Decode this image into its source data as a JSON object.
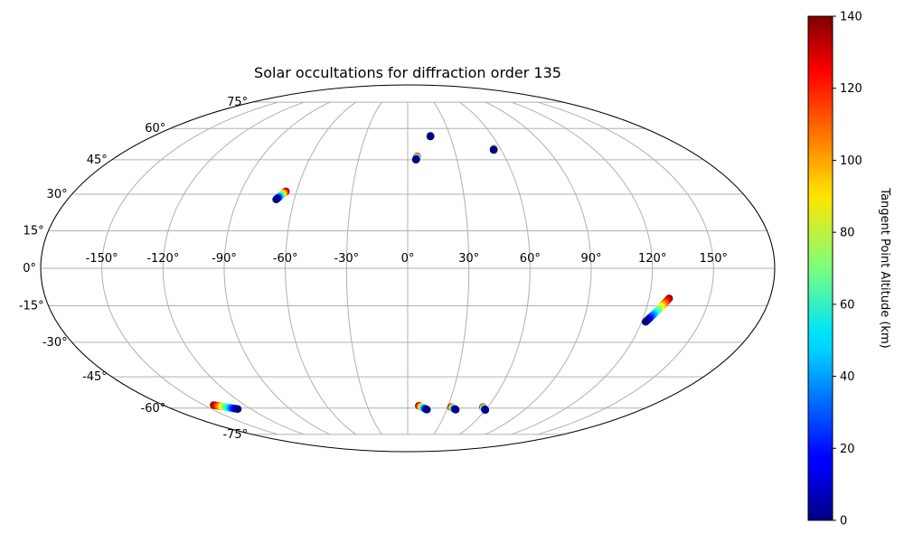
{
  "chart_data": {
    "type": "scatter",
    "projection": "mollweide",
    "title": "Solar occultations for diffraction order 135",
    "lon_ticks": [
      "-150°",
      "-120°",
      "-90°",
      "-60°",
      "-30°",
      "0°",
      "30°",
      "60°",
      "90°",
      "120°",
      "150°"
    ],
    "lon_tick_values": [
      -150,
      -120,
      -90,
      -60,
      -30,
      0,
      30,
      60,
      90,
      120,
      150
    ],
    "lat_ticks": [
      "-75°",
      "-60°",
      "-45°",
      "-30°",
      "-15°",
      "0°",
      "15°",
      "30°",
      "45°",
      "60°",
      "75°"
    ],
    "lat_tick_values": [
      -75,
      -60,
      -45,
      -30,
      -15,
      0,
      15,
      30,
      45,
      60,
      75
    ],
    "grid": true,
    "colormap": "jet",
    "colorbar": {
      "label": "Tangent Point Altitude (km)",
      "range": [
        0,
        140
      ],
      "ticks": [
        "0",
        "20",
        "40",
        "60",
        "80",
        "100",
        "120",
        "140"
      ],
      "tick_values": [
        0,
        20,
        40,
        60,
        80,
        100,
        120,
        140
      ]
    },
    "series": [
      {
        "values": [
          {
            "lon": -69.6,
            "lat": 27.8,
            "alt": 0
          },
          {
            "lon": -65.8,
            "lat": 31.2,
            "alt": 140
          }
        ]
      },
      {
        "values": [
          {
            "lon": 5.0,
            "lat": 45.0,
            "alt": 0
          },
          {
            "lon": 5.8,
            "lat": 46.5,
            "alt": 140
          }
        ]
      },
      {
        "values": [
          {
            "lon": 16.0,
            "lat": 56.0,
            "alt": 0
          },
          {
            "lon": 16.2,
            "lat": 56.3,
            "alt": 140
          }
        ]
      },
      {
        "values": [
          {
            "lon": 55.2,
            "lat": 49.5,
            "alt": 0
          },
          {
            "lon": 55.6,
            "lat": 50.0,
            "alt": 140
          }
        ]
      },
      {
        "values": [
          {
            "lon": 122.0,
            "lat": -21.5,
            "alt": 0
          },
          {
            "lon": 130.0,
            "lat": -12.0,
            "alt": 140
          }
        ]
      },
      {
        "values": [
          {
            "lon": -130.0,
            "lat": -60.5,
            "alt": 0
          },
          {
            "lon": -143.0,
            "lat": -58.5,
            "alt": 140
          }
        ]
      },
      {
        "values": [
          {
            "lon": 14.8,
            "lat": -60.8,
            "alt": 0
          },
          {
            "lon": 8.2,
            "lat": -58.8,
            "alt": 140
          }
        ]
      },
      {
        "values": [
          {
            "lon": 37.0,
            "lat": -60.8,
            "alt": 0
          },
          {
            "lon": 32.5,
            "lat": -59.5,
            "alt": 140
          }
        ]
      },
      {
        "values": [
          {
            "lon": 60.0,
            "lat": -61.0,
            "alt": 0
          },
          {
            "lon": 56.5,
            "lat": -59.5,
            "alt": 140
          }
        ]
      }
    ]
  }
}
